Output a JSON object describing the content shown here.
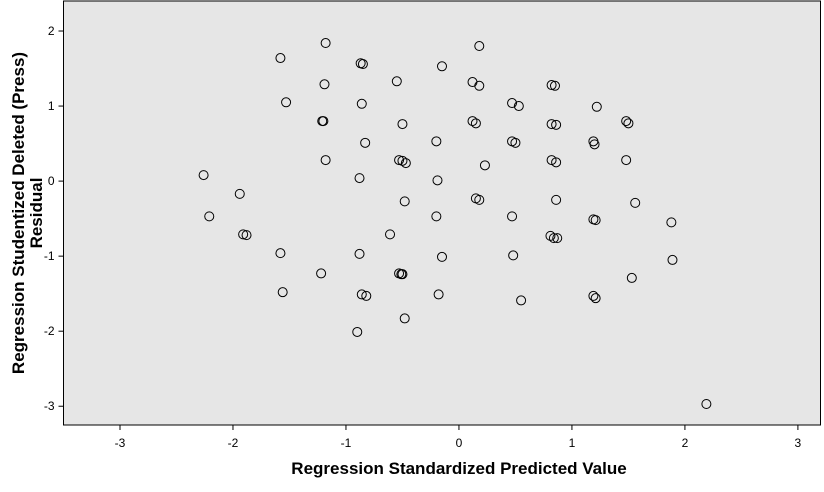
{
  "chart_data": {
    "type": "scatter",
    "xlabel": "Regression Standardized Predicted Value",
    "ylabel": [
      "Regression Studentized Deleted (Press)",
      "Residual"
    ],
    "xlim": [
      -3.5,
      3.2
    ],
    "ylim": [
      -3.25,
      2.4
    ],
    "xticks": [
      -3,
      -2,
      -1,
      0,
      1,
      2,
      3
    ],
    "yticks": [
      -3,
      -2,
      -1,
      0,
      1,
      2
    ],
    "marker_color": "#000000",
    "x": [
      -1.58,
      -1.18,
      -0.87,
      -0.85,
      0.18,
      -1.53,
      -1.19,
      -0.55,
      -0.15,
      0.12,
      0.18,
      0.82,
      0.85,
      1.22,
      -0.86,
      -1.21,
      -1.2,
      -0.5,
      0.12,
      0.15,
      0.47,
      0.53,
      0.82,
      0.86,
      1.48,
      1.5,
      -0.83,
      -0.2,
      0.47,
      0.5,
      1.19,
      1.2,
      -1.18,
      -0.53,
      -0.5,
      -0.47,
      0.23,
      0.82,
      0.86,
      1.48,
      -2.26,
      -0.88,
      -0.19,
      -1.94,
      -0.48,
      0.15,
      0.18,
      0.86,
      1.56,
      -2.21,
      -0.2,
      0.47,
      1.19,
      1.21,
      1.88,
      -1.91,
      -1.88,
      -0.61,
      0.81,
      0.84,
      0.87,
      -1.58,
      -0.88,
      -0.15,
      0.48,
      1.89,
      -1.22,
      -0.53,
      -0.51,
      -0.5,
      1.53,
      -1.56,
      -0.86,
      -0.82,
      -0.18,
      0.55,
      1.19,
      1.21,
      -0.48,
      -0.9,
      2.19
    ],
    "y": [
      1.64,
      1.84,
      1.57,
      1.56,
      1.8,
      1.05,
      1.29,
      1.33,
      1.53,
      1.32,
      1.27,
      1.28,
      1.27,
      0.99,
      1.03,
      0.8,
      0.8,
      0.76,
      0.8,
      0.77,
      1.04,
      1.0,
      0.76,
      0.75,
      0.8,
      0.77,
      0.51,
      0.53,
      0.53,
      0.51,
      0.53,
      0.49,
      0.28,
      0.28,
      0.27,
      0.24,
      0.21,
      0.28,
      0.25,
      0.28,
      0.08,
      0.04,
      0.01,
      -0.17,
      -0.27,
      -0.23,
      -0.25,
      -0.25,
      -0.29,
      -0.47,
      -0.47,
      -0.47,
      -0.51,
      -0.52,
      -0.55,
      -0.71,
      -0.72,
      -0.71,
      -0.73,
      -0.76,
      -0.76,
      -0.96,
      -0.97,
      -1.01,
      -0.99,
      -1.05,
      -1.23,
      -1.23,
      -1.24,
      -1.24,
      -1.29,
      -1.48,
      -1.51,
      -1.53,
      -1.51,
      -1.59,
      -1.53,
      -1.56,
      -1.83,
      -2.01,
      -2.97
    ]
  }
}
